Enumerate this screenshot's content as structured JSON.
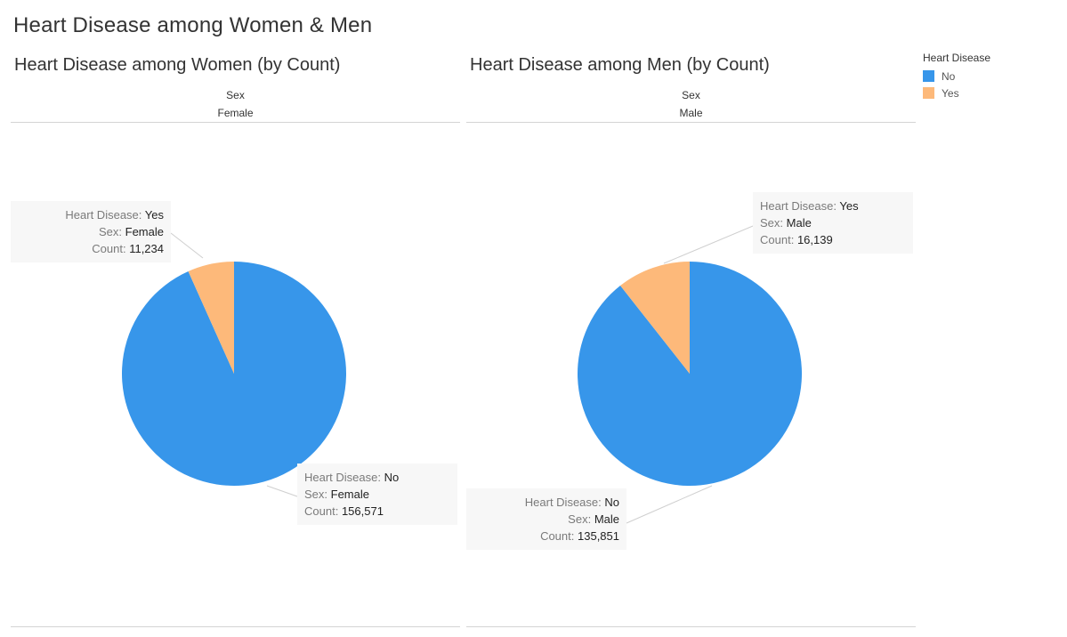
{
  "dashboard": {
    "title": "Heart Disease among Women & Men"
  },
  "legend": {
    "title": "Heart Disease",
    "items": [
      {
        "label": "No",
        "color": "#3796ea"
      },
      {
        "label": "Yes",
        "color": "#fdb97a"
      }
    ]
  },
  "tooltip_keys": {
    "heart_disease": "Heart Disease:",
    "sex": "Sex:",
    "count": "Count:"
  },
  "chart_data": [
    {
      "type": "pie",
      "title": "Heart Disease among Women (by Count)",
      "header_field": "Sex",
      "header_value": "Female",
      "slices": [
        {
          "label": "No",
          "value": 156571,
          "value_text": "156,571",
          "color": "#3796ea"
        },
        {
          "label": "Yes",
          "value": 11234,
          "value_text": "11,234",
          "color": "#fdb97a"
        }
      ],
      "tooltips": [
        {
          "heart_disease": "Yes",
          "sex": "Female",
          "count": "11,234"
        },
        {
          "heart_disease": "No",
          "sex": "Female",
          "count": "156,571"
        }
      ]
    },
    {
      "type": "pie",
      "title": "Heart Disease among Men (by Count)",
      "header_field": "Sex",
      "header_value": "Male",
      "slices": [
        {
          "label": "No",
          "value": 135851,
          "value_text": "135,851",
          "color": "#3796ea"
        },
        {
          "label": "Yes",
          "value": 16139,
          "value_text": "16,139",
          "color": "#fdb97a"
        }
      ],
      "tooltips": [
        {
          "heart_disease": "Yes",
          "sex": "Male",
          "count": "16,139"
        },
        {
          "heart_disease": "No",
          "sex": "Male",
          "count": "135,851"
        }
      ]
    }
  ]
}
